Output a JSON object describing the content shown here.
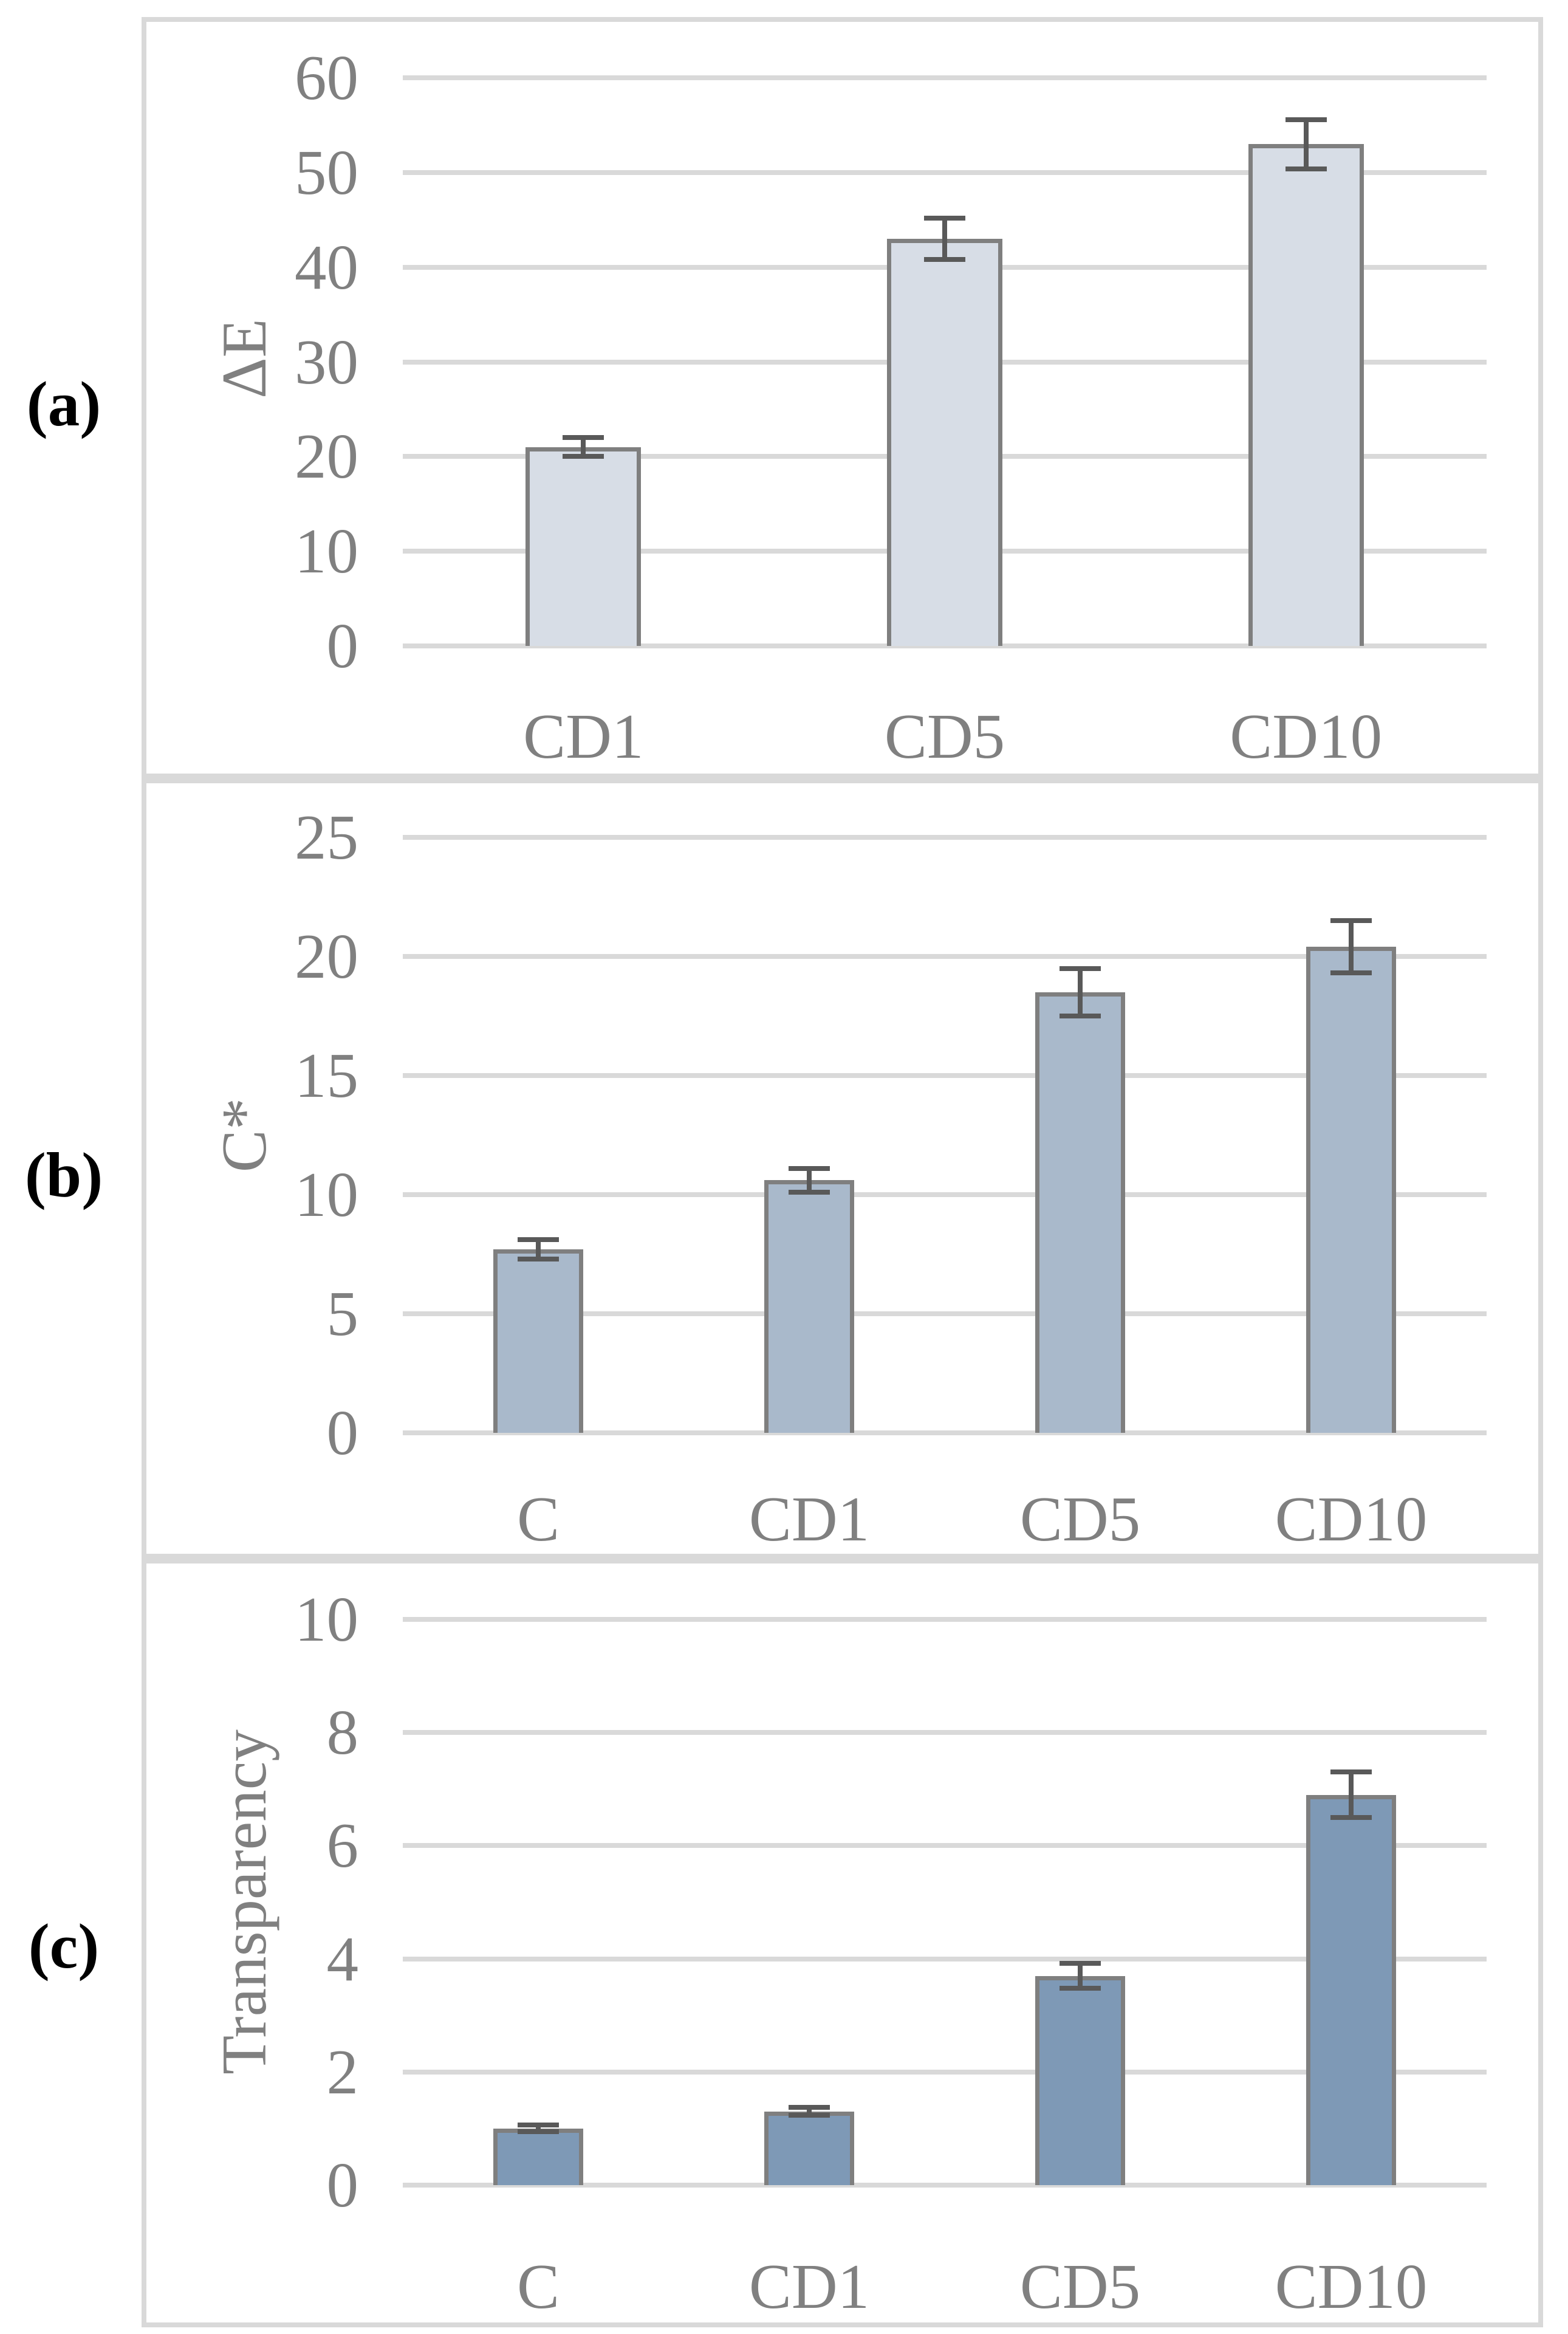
{
  "figure_type": "three-panel bar chart figure",
  "panels": [
    {
      "label": "(a)"
    },
    {
      "label": "(b)"
    },
    {
      "label": "(c)"
    }
  ],
  "colors": {
    "panel_border": "#d9d9d9",
    "gridline": "#d9d9d9",
    "axis_text": "#808080",
    "error_bar": "#595959",
    "panel_letter": "#000000"
  },
  "chart_data": [
    {
      "type": "bar",
      "title": "",
      "ylabel": "ΔE",
      "xlabel": "",
      "categories": [
        "CD1",
        "CD5",
        "CD10"
      ],
      "values": [
        21,
        43,
        53
      ],
      "errors": [
        1.0,
        2.2,
        2.6
      ],
      "yticks": [
        0,
        10,
        20,
        30,
        40,
        50,
        60
      ],
      "ylim": [
        0,
        60
      ],
      "grid": true,
      "legend": "none",
      "bar_fill": "#d7dde6",
      "bar_border": "#7f7f7f"
    },
    {
      "type": "bar",
      "title": "",
      "ylabel": "C*",
      "xlabel": "",
      "categories": [
        "C",
        "CD1",
        "CD5",
        "CD10"
      ],
      "values": [
        7.7,
        10.6,
        18.5,
        20.4
      ],
      "errors": [
        0.4,
        0.5,
        1.0,
        1.1
      ],
      "yticks": [
        0,
        5,
        10,
        15,
        20,
        25
      ],
      "ylim": [
        0,
        25
      ],
      "grid": true,
      "legend": "none",
      "bar_fill": "#a9b9cb",
      "bar_border": "#7f7f7f"
    },
    {
      "type": "bar",
      "title": "",
      "ylabel": "Transparency",
      "xlabel": "",
      "categories": [
        "C",
        "CD1",
        "CD5",
        "CD10"
      ],
      "values": [
        1.0,
        1.3,
        3.7,
        6.9
      ],
      "errors": [
        0.06,
        0.07,
        0.22,
        0.4
      ],
      "yticks": [
        0,
        2,
        4,
        6,
        8,
        10
      ],
      "ylim": [
        0,
        10
      ],
      "grid": true,
      "legend": "none",
      "bar_fill": "#7e99b6",
      "bar_border": "#7f7f7f"
    }
  ]
}
